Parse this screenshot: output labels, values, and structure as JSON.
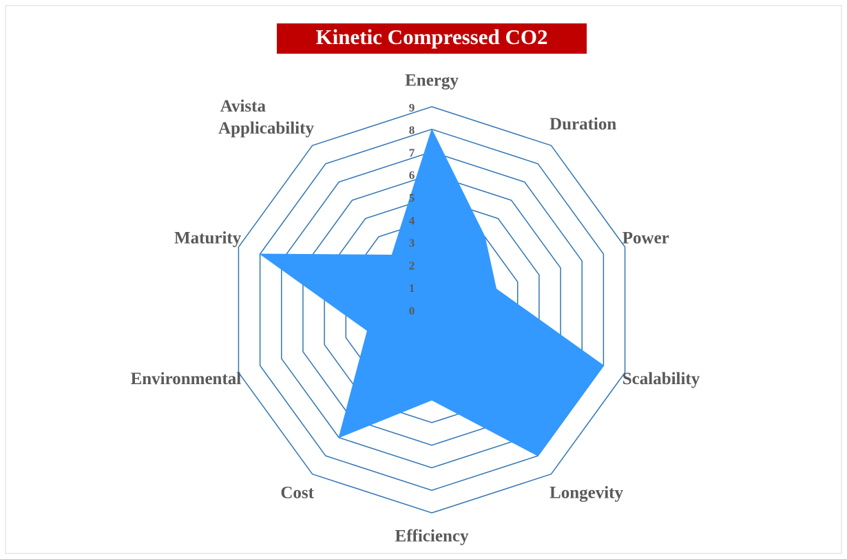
{
  "chart_data": {
    "type": "radar",
    "title": "Kinetic Compressed CO2",
    "categories": [
      "Energy",
      "Duration",
      "Power",
      "Scalability",
      "Longevity",
      "Efficiency",
      "Cost",
      "Environmental",
      "Maturity",
      "Avista Applicability"
    ],
    "series": [
      {
        "name": "Kinetic Compressed CO2",
        "color": "#3399ff",
        "values": [
          8,
          4,
          3,
          8,
          8,
          4,
          7,
          3,
          8,
          3
        ]
      }
    ],
    "ylim": [
      0,
      9
    ],
    "yticks": [
      0,
      1,
      2,
      3,
      4,
      5,
      6,
      7,
      8,
      9
    ],
    "grid": true,
    "grid_color": "#2e75b6"
  }
}
